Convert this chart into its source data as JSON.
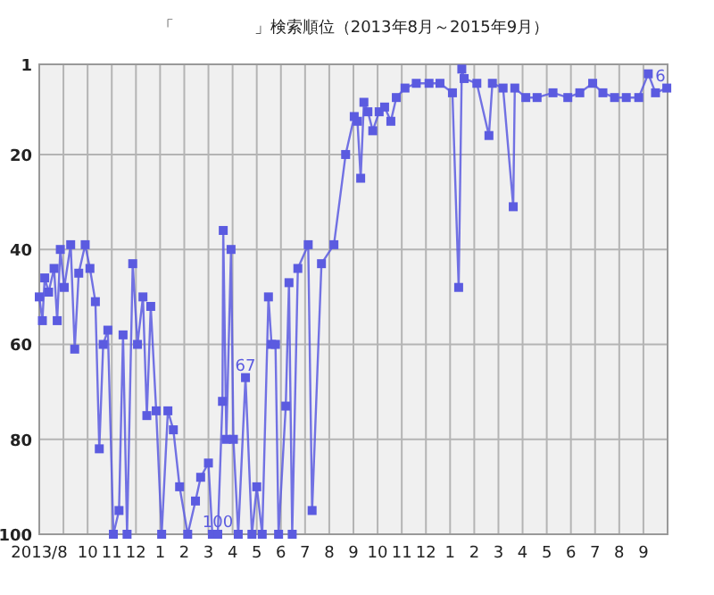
{
  "chart_data": {
    "type": "line",
    "title": "「　　　　　」検索順位（2013年8月～2015年9月）",
    "x": [
      "2013-08-01",
      "2013-08-05",
      "2013-08-08",
      "2013-08-13",
      "2013-08-20",
      "2013-08-24",
      "2013-08-28",
      "2013-09-02",
      "2013-09-10",
      "2013-09-15",
      "2013-09-20",
      "2013-09-28",
      "2013-10-04",
      "2013-10-11",
      "2013-10-16",
      "2013-10-21",
      "2013-10-27",
      "2013-11-03",
      "2013-11-10",
      "2013-11-15",
      "2013-11-20",
      "2013-11-27",
      "2013-12-03",
      "2013-12-10",
      "2013-12-15",
      "2013-12-20",
      "2013-12-27",
      "2014-01-03",
      "2014-01-11",
      "2014-01-18",
      "2014-01-26",
      "2014-02-05",
      "2014-02-14",
      "2014-02-20",
      "2014-03-01",
      "2014-03-06",
      "2014-03-13",
      "2014-03-19",
      "2014-03-20",
      "2014-03-24",
      "2014-03-30",
      "2014-04-02",
      "2014-04-08",
      "2014-04-17",
      "2014-04-25",
      "2014-05-01",
      "2014-05-08",
      "2014-05-16",
      "2014-05-20",
      "2014-05-25",
      "2014-05-29",
      "2014-06-07",
      "2014-06-11",
      "2014-06-15",
      "2014-06-22",
      "2014-07-05",
      "2014-07-10",
      "2014-07-22",
      "2014-08-07",
      "2014-08-22",
      "2014-09-02",
      "2014-09-06",
      "2014-09-10",
      "2014-09-14",
      "2014-09-19",
      "2014-09-25",
      "2014-10-03",
      "2014-10-10",
      "2014-10-18",
      "2014-10-25",
      "2014-11-05",
      "2014-11-19",
      "2014-12-05",
      "2014-12-19",
      "2015-01-04",
      "2015-01-12",
      "2015-01-16",
      "2015-01-19",
      "2015-02-04",
      "2015-02-18",
      "2015-02-22",
      "2015-03-07",
      "2015-03-20",
      "2015-03-22",
      "2015-04-05",
      "2015-04-19",
      "2015-05-09",
      "2015-05-28",
      "2015-06-12",
      "2015-06-28",
      "2015-07-11",
      "2015-07-26",
      "2015-08-10",
      "2015-08-26",
      "2015-09-07",
      "2015-09-16",
      "2015-09-30"
    ],
    "values": [
      50,
      55,
      46,
      49,
      44,
      55,
      40,
      48,
      39,
      61,
      45,
      39,
      44,
      51,
      82,
      60,
      57,
      100,
      95,
      58,
      100,
      43,
      60,
      50,
      75,
      52,
      74,
      100,
      74,
      78,
      90,
      100,
      93,
      88,
      85,
      100,
      100,
      72,
      36,
      80,
      40,
      80,
      100,
      67,
      100,
      90,
      100,
      50,
      60,
      60,
      100,
      73,
      47,
      100,
      44,
      39,
      95,
      43,
      39,
      20,
      12,
      13,
      25,
      9,
      11,
      15,
      11,
      10,
      13,
      8,
      6,
      5,
      5,
      5,
      7,
      48,
      2,
      4,
      5,
      16,
      5,
      6,
      31,
      6,
      8,
      8,
      7,
      8,
      7,
      5,
      7,
      8,
      8,
      8,
      3,
      7,
      6
    ],
    "value_labels": [
      null,
      null,
      null,
      null,
      null,
      null,
      null,
      null,
      null,
      null,
      null,
      null,
      null,
      null,
      null,
      null,
      null,
      null,
      null,
      null,
      null,
      null,
      null,
      null,
      null,
      null,
      null,
      null,
      null,
      null,
      null,
      null,
      null,
      null,
      null,
      null,
      "100",
      null,
      null,
      null,
      null,
      null,
      null,
      "67",
      null,
      null,
      null,
      null,
      null,
      null,
      null,
      null,
      null,
      null,
      null,
      null,
      null,
      null,
      null,
      null,
      null,
      null,
      null,
      null,
      null,
      null,
      null,
      null,
      null,
      null,
      null,
      null,
      null,
      null,
      null,
      null,
      null,
      null,
      null,
      null,
      null,
      null,
      null,
      null,
      null,
      null,
      null,
      null,
      null,
      null,
      null,
      null,
      null,
      null,
      null,
      null,
      "6"
    ],
    "color": "#5b5be0",
    "marker": "square",
    "grid": true,
    "xlim": [
      "2013-08",
      "2015-10"
    ],
    "ylim": [
      100,
      1
    ],
    "xticks": [
      {
        "value": "2013-08",
        "label": "2013/8"
      },
      {
        "value": "2013-09",
        "label": null
      },
      {
        "value": "2013-10",
        "label": "10"
      },
      {
        "value": "2013-11",
        "label": "11"
      },
      {
        "value": "2013-12",
        "label": "12"
      },
      {
        "value": "2014-01",
        "label": "1"
      },
      {
        "value": "2014-02",
        "label": "2"
      },
      {
        "value": "2014-03",
        "label": "3"
      },
      {
        "value": "2014-04",
        "label": "4"
      },
      {
        "value": "2014-05",
        "label": "5"
      },
      {
        "value": "2014-06",
        "label": "6"
      },
      {
        "value": "2014-07",
        "label": "7"
      },
      {
        "value": "2014-08",
        "label": "8"
      },
      {
        "value": "2014-09",
        "label": "9"
      },
      {
        "value": "2014-10",
        "label": "10"
      },
      {
        "value": "2014-11",
        "label": "11"
      },
      {
        "value": "2014-12",
        "label": "12"
      },
      {
        "value": "2015-01",
        "label": "1"
      },
      {
        "value": "2015-02",
        "label": "2"
      },
      {
        "value": "2015-03",
        "label": "3"
      },
      {
        "value": "2015-04",
        "label": "4"
      },
      {
        "value": "2015-05",
        "label": "5"
      },
      {
        "value": "2015-06",
        "label": "6"
      },
      {
        "value": "2015-07",
        "label": "7"
      },
      {
        "value": "2015-08",
        "label": "8"
      },
      {
        "value": "2015-09",
        "label": "9"
      }
    ],
    "yticks": [
      1,
      20,
      40,
      60,
      80,
      100
    ]
  }
}
